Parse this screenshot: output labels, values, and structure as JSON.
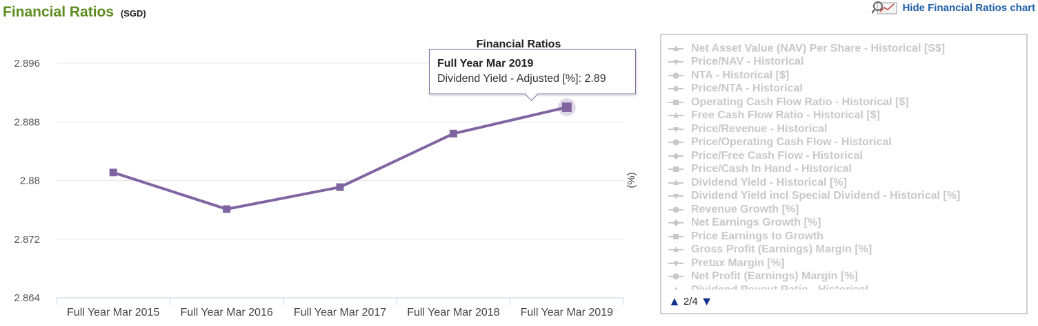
{
  "header": {
    "title": "Financial Ratios",
    "currency": "(SGD)",
    "hide_chart_label": "Hide Financial Ratios chart"
  },
  "chart_data": {
    "type": "line",
    "title": "Financial Ratios",
    "ylabel": "(%)",
    "categories": [
      "Full Year Mar 2015",
      "Full Year Mar 2016",
      "Full Year Mar 2017",
      "Full Year Mar 2018",
      "Full Year Mar 2019"
    ],
    "series": [
      {
        "name": "Dividend Yield - Adjusted [%]",
        "values": [
          2.8811,
          2.8761,
          2.8791,
          2.8864,
          2.89
        ],
        "color": "#8064a2"
      }
    ],
    "yticks": [
      "2.896",
      "2.888",
      "2.88",
      "2.872",
      "2.864"
    ],
    "ylim": [
      2.864,
      2.896
    ],
    "grid": true,
    "legend_position": "right",
    "highlighted_index": 4
  },
  "tooltip": {
    "title": "Full Year Mar 2019",
    "body": "Dividend Yield - Adjusted [%]: 2.89"
  },
  "legend": {
    "items": [
      {
        "label": "Net Asset Value (NAV) Per Share - Historical [S$]",
        "marker": "triangle"
      },
      {
        "label": "Price/NAV - Historical",
        "marker": "triangle-down"
      },
      {
        "label": "NTA - Historical [$]",
        "marker": "circle"
      },
      {
        "label": "Price/NTA - Historical",
        "marker": "diamond"
      },
      {
        "label": "Operating Cash Flow Ratio - Historical [$]",
        "marker": "square"
      },
      {
        "label": "Free Cash Flow Ratio - Historical [$]",
        "marker": "triangle"
      },
      {
        "label": "Price/Revenue - Historical",
        "marker": "triangle-down"
      },
      {
        "label": "Price/Operating Cash Flow - Historical",
        "marker": "circle"
      },
      {
        "label": "Price/Free Cash Flow - Historical",
        "marker": "diamond"
      },
      {
        "label": "Price/Cash In Hand - Historical",
        "marker": "square"
      },
      {
        "label": "Dividend Yield - Historical [%]",
        "marker": "triangle"
      },
      {
        "label": "Dividend Yield incl Special Dividend - Historical [%]",
        "marker": "triangle-down"
      },
      {
        "label": "Revenue Growth [%]",
        "marker": "circle"
      },
      {
        "label": "Net Earnings Growth [%]",
        "marker": "diamond"
      },
      {
        "label": "Price Earnings to Growth",
        "marker": "square"
      },
      {
        "label": "Gross Profit (Earnings) Margin [%]",
        "marker": "triangle"
      },
      {
        "label": "Pretax Margin [%]",
        "marker": "triangle-down"
      },
      {
        "label": "Net Profit (Earnings) Margin [%]",
        "marker": "circle"
      },
      {
        "label": "Dividend Payout Ratio - Historical",
        "marker": "triangle"
      }
    ],
    "page": "2/4",
    "colors": {
      "inactive": "#c8c8c8",
      "nav_arrow": "#13318c"
    }
  }
}
